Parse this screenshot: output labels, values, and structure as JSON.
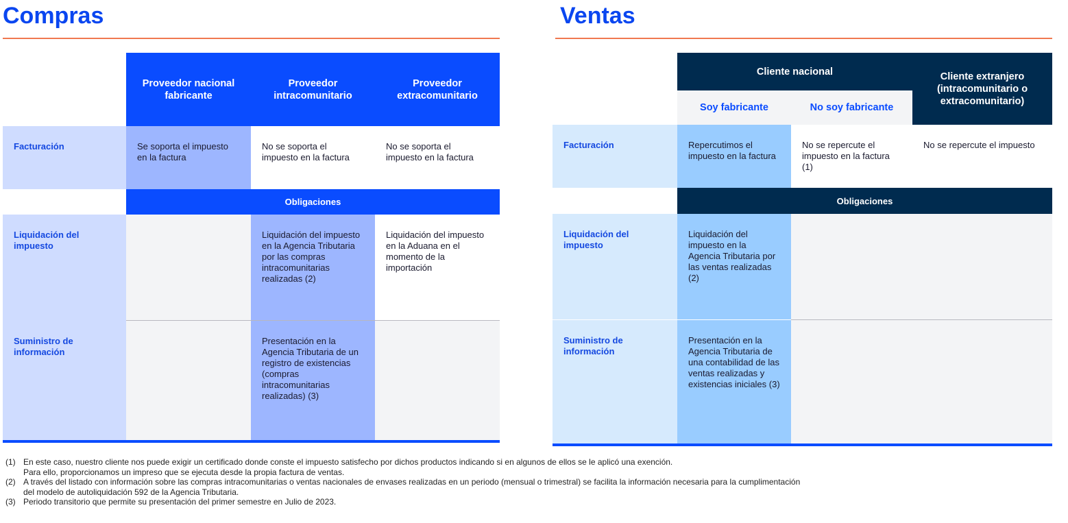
{
  "compras": {
    "title": "Compras",
    "columns": [
      "Proveedor nacional fabricante",
      "Proveedor intracomunitario",
      "Proveedor extracomunitario"
    ],
    "obligaciones": "Obligaciones",
    "rows": {
      "facturacion": {
        "label": "Facturación",
        "cells": [
          "Se soporta el impuesto en la factura",
          "No se soporta el impuesto en la factura",
          "No se soporta el impuesto en la factura"
        ]
      },
      "liquidacion": {
        "label": "Liquidación del impuesto",
        "cells": [
          "",
          "Liquidación del impuesto en la Agencia Tributaria por las compras intracomunitarias realizadas (2)",
          "Liquidación del impuesto en la Aduana en el momento de la importación"
        ]
      },
      "suministro": {
        "label": "Suministro de información",
        "cells": [
          "",
          "Presentación en la Agencia Tributaria de un registro de existencias (compras intracomunitarias realizadas) (3)",
          ""
        ]
      }
    }
  },
  "ventas": {
    "title": "Ventas",
    "group": "Cliente nacional",
    "subcolumns": [
      "Soy fabricante",
      "No soy fabricante"
    ],
    "foreign": "Cliente extranjero (intracomunitario o extracomunitario)",
    "obligaciones": "Obligaciones",
    "rows": {
      "facturacion": {
        "label": "Facturación",
        "cells": [
          "Repercutimos el impuesto en la factura",
          "No se repercute el impuesto en la factura (1)",
          "No se repercute el impuesto"
        ]
      },
      "liquidacion": {
        "label": "Liquidación del impuesto",
        "cells": [
          "Liquidación del impuesto en la Agencia Tributaria por las ventas realizadas (2)"
        ]
      },
      "suministro": {
        "label": "Suministro de información",
        "cells": [
          "Presentación en la Agencia Tributaria de una contabilidad de las ventas realizadas y existencias iniciales (3)"
        ]
      }
    }
  },
  "notes": [
    {
      "num": "(1)",
      "lines": [
        "En este caso, nuestro cliente nos puede exigir un certificado donde conste el impuesto satisfecho por dichos productos indicando si en algunos de ellos se le aplicó una exención.",
        "Para ello, proporcionamos un impreso que se ejecuta desde la propia factura de ventas."
      ]
    },
    {
      "num": "(2)",
      "lines": [
        "A través del listado con información sobre las compras intracomunitarias o ventas nacionales de envases realizadas en un periodo (mensual o trimestral) se facilita la información necesaria para la cumplimentación",
        "del modelo de autoliquidación 592 de la Agencia Tributaria."
      ]
    },
    {
      "num": "(3)",
      "lines": [
        "Periodo transitorio que permite su presentación del primer semestre en Julio de 2023."
      ]
    }
  ],
  "colors": {
    "blue": "#0a4cff",
    "navy": "#002b4f",
    "compras_light": "#cfdcff",
    "compras_highlight": "#9db6ff",
    "ventas_light": "#d6eafd",
    "ventas_highlight": "#99ccff",
    "rule": "#f07850"
  }
}
